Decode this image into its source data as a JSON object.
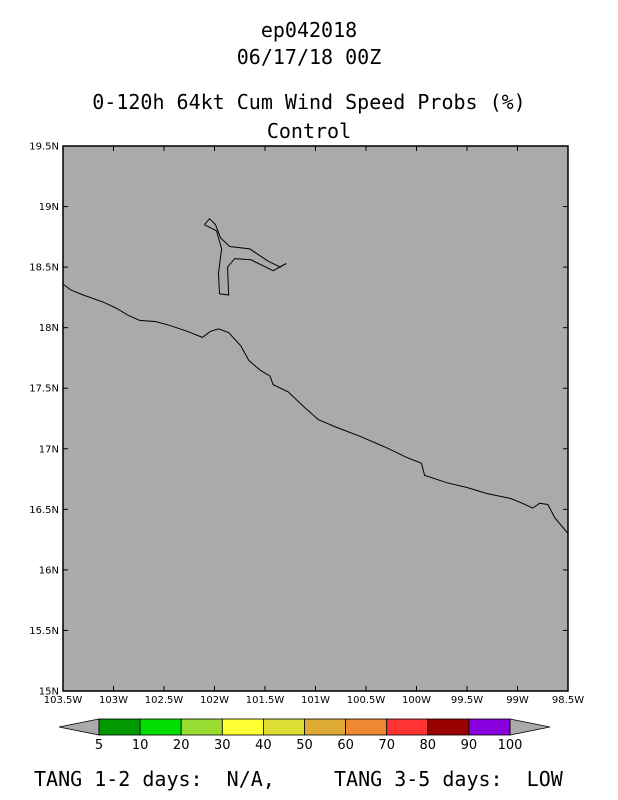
{
  "header": {
    "storm_id": "ep042018",
    "datetime": "06/17/18 00Z",
    "product": "0-120h 64kt Cum Wind Speed Probs (%)",
    "run": "Control"
  },
  "map": {
    "background_color": "#aaaaaa",
    "lat_range": [
      15,
      19.5
    ],
    "lon_range": [
      -103.5,
      -98.5
    ],
    "lat_ticks": [
      "15N",
      "15.5N",
      "16N",
      "16.5N",
      "17N",
      "17.5N",
      "18N",
      "18.5N",
      "19N",
      "19.5N"
    ],
    "lon_ticks": [
      "103.5W",
      "103W",
      "102.5W",
      "102W",
      "101.5W",
      "101W",
      "100.5W",
      "100W",
      "99.5W",
      "99W",
      "98.5W"
    ],
    "coastline": [
      [
        -103.5,
        18.36
      ],
      [
        -103.42,
        18.31
      ],
      [
        -103.3,
        18.27
      ],
      [
        -103.1,
        18.21
      ],
      [
        -102.97,
        18.16
      ],
      [
        -102.85,
        18.1
      ],
      [
        -102.74,
        18.06
      ],
      [
        -102.58,
        18.05
      ],
      [
        -102.45,
        18.02
      ],
      [
        -102.27,
        17.97
      ],
      [
        -102.12,
        17.92
      ],
      [
        -102.04,
        17.97
      ],
      [
        -101.96,
        17.99
      ],
      [
        -101.86,
        17.96
      ],
      [
        -101.74,
        17.85
      ],
      [
        -101.66,
        17.73
      ],
      [
        -101.55,
        17.65
      ],
      [
        -101.45,
        17.6
      ],
      [
        -101.42,
        17.53
      ],
      [
        -101.27,
        17.47
      ],
      [
        -101.12,
        17.35
      ],
      [
        -100.97,
        17.24
      ],
      [
        -100.8,
        17.18
      ],
      [
        -100.55,
        17.1
      ],
      [
        -100.3,
        17.01
      ],
      [
        -100.1,
        16.93
      ],
      [
        -99.95,
        16.88
      ],
      [
        -99.92,
        16.78
      ],
      [
        -99.7,
        16.72
      ],
      [
        -99.5,
        16.68
      ],
      [
        -99.3,
        16.63
      ],
      [
        -99.07,
        16.59
      ],
      [
        -98.95,
        16.55
      ],
      [
        -98.85,
        16.51
      ],
      [
        -98.78,
        16.55
      ],
      [
        -98.7,
        16.54
      ],
      [
        -98.63,
        16.43
      ],
      [
        -98.5,
        16.3
      ]
    ],
    "lake": [
      [
        -102.1,
        18.85
      ],
      [
        -102.05,
        18.9
      ],
      [
        -101.99,
        18.85
      ],
      [
        -101.94,
        18.74
      ],
      [
        -101.85,
        18.67
      ],
      [
        -101.65,
        18.65
      ],
      [
        -101.47,
        18.55
      ],
      [
        -101.35,
        18.5
      ],
      [
        -101.29,
        18.53
      ],
      [
        -101.42,
        18.47
      ],
      [
        -101.64,
        18.56
      ],
      [
        -101.8,
        18.57
      ],
      [
        -101.87,
        18.5
      ],
      [
        -101.86,
        18.27
      ],
      [
        -101.95,
        18.28
      ],
      [
        -101.96,
        18.45
      ],
      [
        -101.93,
        18.65
      ],
      [
        -101.98,
        18.8
      ],
      [
        -102.1,
        18.85
      ]
    ]
  },
  "colorbar": {
    "levels": [
      "5",
      "10",
      "20",
      "30",
      "40",
      "50",
      "60",
      "70",
      "80",
      "90",
      "100"
    ],
    "colors": [
      "#009900",
      "#00dd00",
      "#99dd33",
      "#ffff33",
      "#dddd33",
      "#ddaa33",
      "#ee8833",
      "#ff3333",
      "#990000",
      "#8800dd"
    ],
    "under_color": "#aaaaaa",
    "over_color": "#aaaaaa"
  },
  "footer": {
    "tang_1_2_label": "TANG 1-2 days:",
    "tang_1_2_value": "N/A,",
    "tang_3_5_label": "TANG 3-5 days:",
    "tang_3_5_value": "LOW"
  }
}
